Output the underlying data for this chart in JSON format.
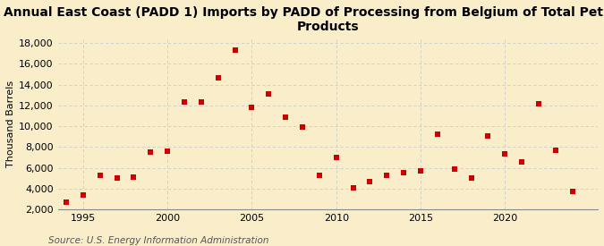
{
  "title": "Annual East Coast (PADD 1) Imports by PADD of Processing from Belgium of Total Petroleum\nProducts",
  "ylabel": "Thousand Barrels",
  "source": "Source: U.S. Energy Information Administration",
  "background_color": "#faeeca",
  "plot_bg_color": "#faeeca",
  "marker_color": "#cc0000",
  "marker": "s",
  "marker_size": 4,
  "xlim": [
    1993.5,
    2025.5
  ],
  "ylim": [
    2000,
    18500
  ],
  "yticks": [
    2000,
    4000,
    6000,
    8000,
    10000,
    12000,
    14000,
    16000,
    18000
  ],
  "ytick_labels": [
    "2,000",
    "4,000",
    "6,000",
    "8,000",
    "10,000",
    "12,000",
    "14,000",
    "16,000",
    "18,000"
  ],
  "xticks": [
    1995,
    2000,
    2005,
    2010,
    2015,
    2020
  ],
  "grid_color": "#cccccc",
  "title_fontsize": 10,
  "axis_fontsize": 8,
  "source_fontsize": 7.5,
  "years": [
    1994,
    1995,
    1996,
    1997,
    1998,
    1999,
    2000,
    2001,
    2002,
    2003,
    2004,
    2005,
    2006,
    2007,
    2008,
    2009,
    2010,
    2011,
    2012,
    2013,
    2014,
    2015,
    2016,
    2017,
    2018,
    2019,
    2020,
    2021,
    2022,
    2023,
    2024
  ],
  "values": [
    2700,
    3400,
    5300,
    5000,
    5100,
    7500,
    7600,
    12300,
    12300,
    14700,
    17300,
    11800,
    13100,
    10900,
    9900,
    5300,
    7000,
    4100,
    4700,
    5300,
    5500,
    5700,
    9200,
    5900,
    5000,
    9100,
    7300,
    6600,
    12200,
    7700,
    3700
  ]
}
